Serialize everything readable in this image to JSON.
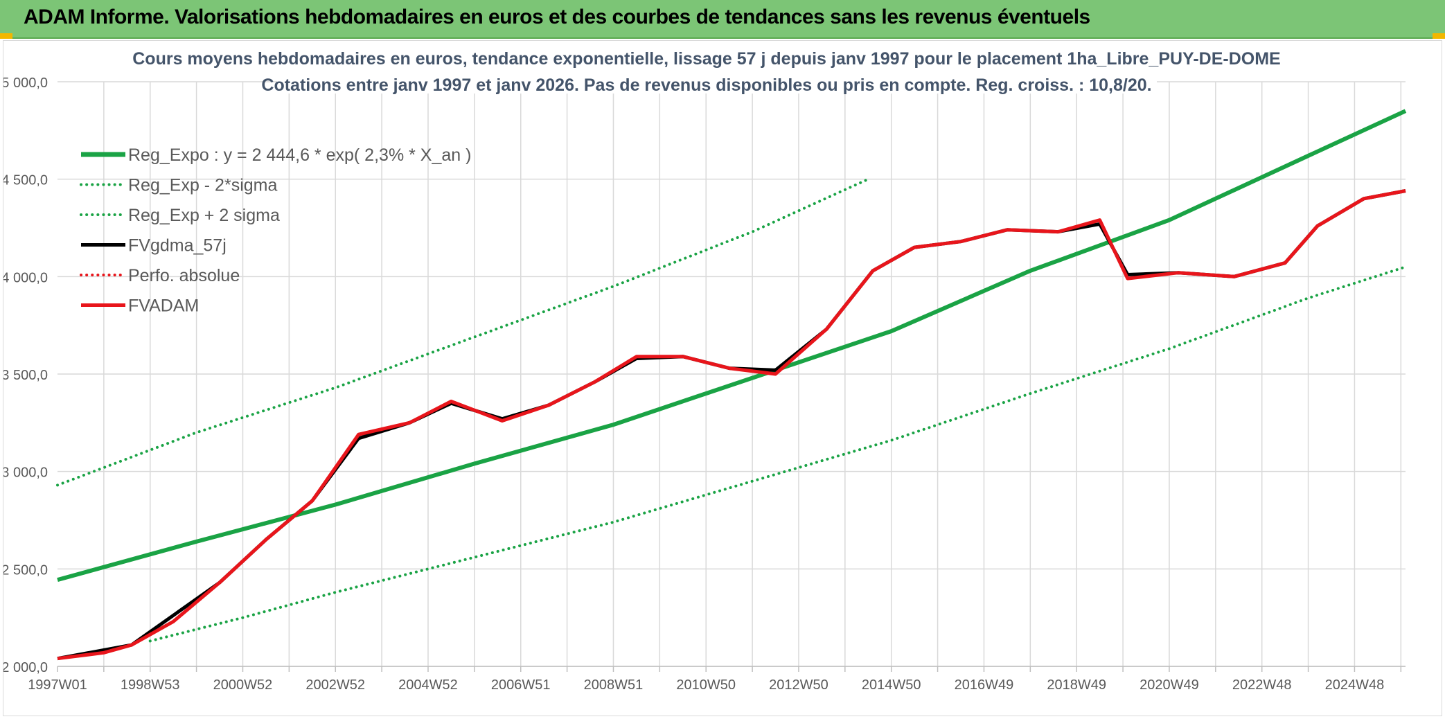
{
  "header": {
    "title": "ADAM Informe. Valorisations hebdomadaires en euros et des courbes de tendances sans les revenus éventuels"
  },
  "chart_data": {
    "type": "line",
    "title": "Cours moyens hebdomadaires en euros, tendance exponentielle, lissage 57 j depuis janv 1997 pour le placement 1ha_Libre_PUY-DE-DOME",
    "subtitle": "Cotations entre janv 1997 et janv 2026. Pas de revenus disponibles ou pris en compte. Reg. croiss. : 10,8/20.",
    "xlabel": "",
    "ylabel": "",
    "xlim": [
      1997.0,
      2026.1
    ],
    "ylim": [
      2000,
      5000
    ],
    "grid": true,
    "legend_position": "top-left",
    "y_ticks": [
      {
        "value": 2000,
        "label": "2 000,0"
      },
      {
        "value": 2500,
        "label": "2 500,0"
      },
      {
        "value": 3000,
        "label": "3 000,0"
      },
      {
        "value": 3500,
        "label": "3 500,0"
      },
      {
        "value": 4000,
        "label": "4 000,0"
      },
      {
        "value": 4500,
        "label": "4 500,0"
      },
      {
        "value": 5000,
        "label": "5 000,0"
      }
    ],
    "x_ticks": [
      {
        "value": 1997,
        "label": "1997W01"
      },
      {
        "value": 1999,
        "label": "1998W53"
      },
      {
        "value": 2001,
        "label": "2000W52"
      },
      {
        "value": 2003,
        "label": "2002W52"
      },
      {
        "value": 2005,
        "label": "2004W52"
      },
      {
        "value": 2007,
        "label": "2006W51"
      },
      {
        "value": 2009,
        "label": "2008W51"
      },
      {
        "value": 2011,
        "label": "2010W50"
      },
      {
        "value": 2013,
        "label": "2012W50"
      },
      {
        "value": 2015,
        "label": "2014W50"
      },
      {
        "value": 2017,
        "label": "2016W49"
      },
      {
        "value": 2019,
        "label": "2018W49"
      },
      {
        "value": 2021,
        "label": "2020W49"
      },
      {
        "value": 2023,
        "label": "2022W48"
      },
      {
        "value": 2025,
        "label": "2024W48"
      }
    ],
    "minor_x_ticks": [
      1998,
      2000,
      2002,
      2004,
      2006,
      2008,
      2010,
      2012,
      2014,
      2016,
      2018,
      2020,
      2022,
      2024,
      2026
    ],
    "series": [
      {
        "name": "Reg_Expo : y = 2 444,6 * exp( 2,3% *  X_an )",
        "color": "#1aa345",
        "style": "solid",
        "width": 6,
        "x": [
          1997,
          2000,
          2003,
          2006,
          2009,
          2012,
          2015,
          2018,
          2021,
          2024,
          2026.1
        ],
        "values": [
          2444,
          2640,
          2830,
          3040,
          3240,
          3480,
          3720,
          4030,
          4290,
          4620,
          4850
        ]
      },
      {
        "name": "Reg_Exp - 2*sigma",
        "color": "#1aa345",
        "style": "dotted",
        "width": 4,
        "x": [
          1999,
          2001,
          2003,
          2006,
          2009,
          2012,
          2015,
          2018,
          2021,
          2024,
          2026.1
        ],
        "values": [
          2130,
          2250,
          2380,
          2560,
          2740,
          2950,
          3160,
          3400,
          3630,
          3890,
          4050
        ]
      },
      {
        "name": "Reg_Exp + 2 sigma",
        "color": "#1aa345",
        "style": "dotted",
        "width": 4,
        "x": [
          1997,
          2000,
          2003,
          2006,
          2009,
          2012,
          2014.5
        ],
        "values": [
          2930,
          3200,
          3430,
          3690,
          3950,
          4230,
          4500
        ]
      },
      {
        "name": "FVgdma_57j",
        "color": "#000000",
        "style": "solid",
        "width": 5,
        "x": [
          1997,
          1998.6,
          2000.5,
          2001.5,
          2002.5,
          2003.5,
          2004.6,
          2005.5,
          2006.6,
          2007.6,
          2008.6,
          2009.5,
          2010.5,
          2011.5,
          2012.5,
          2013.6,
          2014.6,
          2015.5,
          2016.5,
          2017.5,
          2018.6,
          2019.5,
          2020.1,
          2021.2,
          2022.4,
          2023.5,
          2024.2,
          2025.2,
          2026.1
        ],
        "values": [
          2040,
          2110,
          2430,
          2650,
          2850,
          3170,
          3250,
          3350,
          3270,
          3340,
          3460,
          3580,
          3590,
          3530,
          3520,
          3730,
          4030,
          4150,
          4180,
          4240,
          4230,
          4270,
          4010,
          4020,
          4000,
          4070,
          4260,
          4400,
          4440
        ]
      },
      {
        "name": "Perfo. absolue",
        "color": "#e8151b",
        "style": "dotted",
        "width": 3,
        "x": [],
        "values": []
      },
      {
        "name": "FVADAM",
        "color": "#e8151b",
        "style": "solid",
        "width": 5,
        "x": [
          1997,
          1998.0,
          1998.6,
          1999.5,
          2000.5,
          2001.5,
          2002.5,
          2003.5,
          2004.6,
          2005.5,
          2006.6,
          2007.6,
          2008.6,
          2009.5,
          2010.5,
          2011.5,
          2012.5,
          2013.6,
          2014.6,
          2015.5,
          2016.5,
          2017.5,
          2018.6,
          2019.5,
          2020.1,
          2021.2,
          2022.4,
          2023.5,
          2024.2,
          2025.2,
          2026.1
        ],
        "values": [
          2040,
          2070,
          2110,
          2230,
          2430,
          2650,
          2850,
          3190,
          3250,
          3360,
          3260,
          3340,
          3460,
          3590,
          3590,
          3530,
          3500,
          3730,
          4030,
          4150,
          4180,
          4240,
          4230,
          4290,
          3990,
          4020,
          4000,
          4070,
          4260,
          4400,
          4440
        ]
      }
    ]
  }
}
